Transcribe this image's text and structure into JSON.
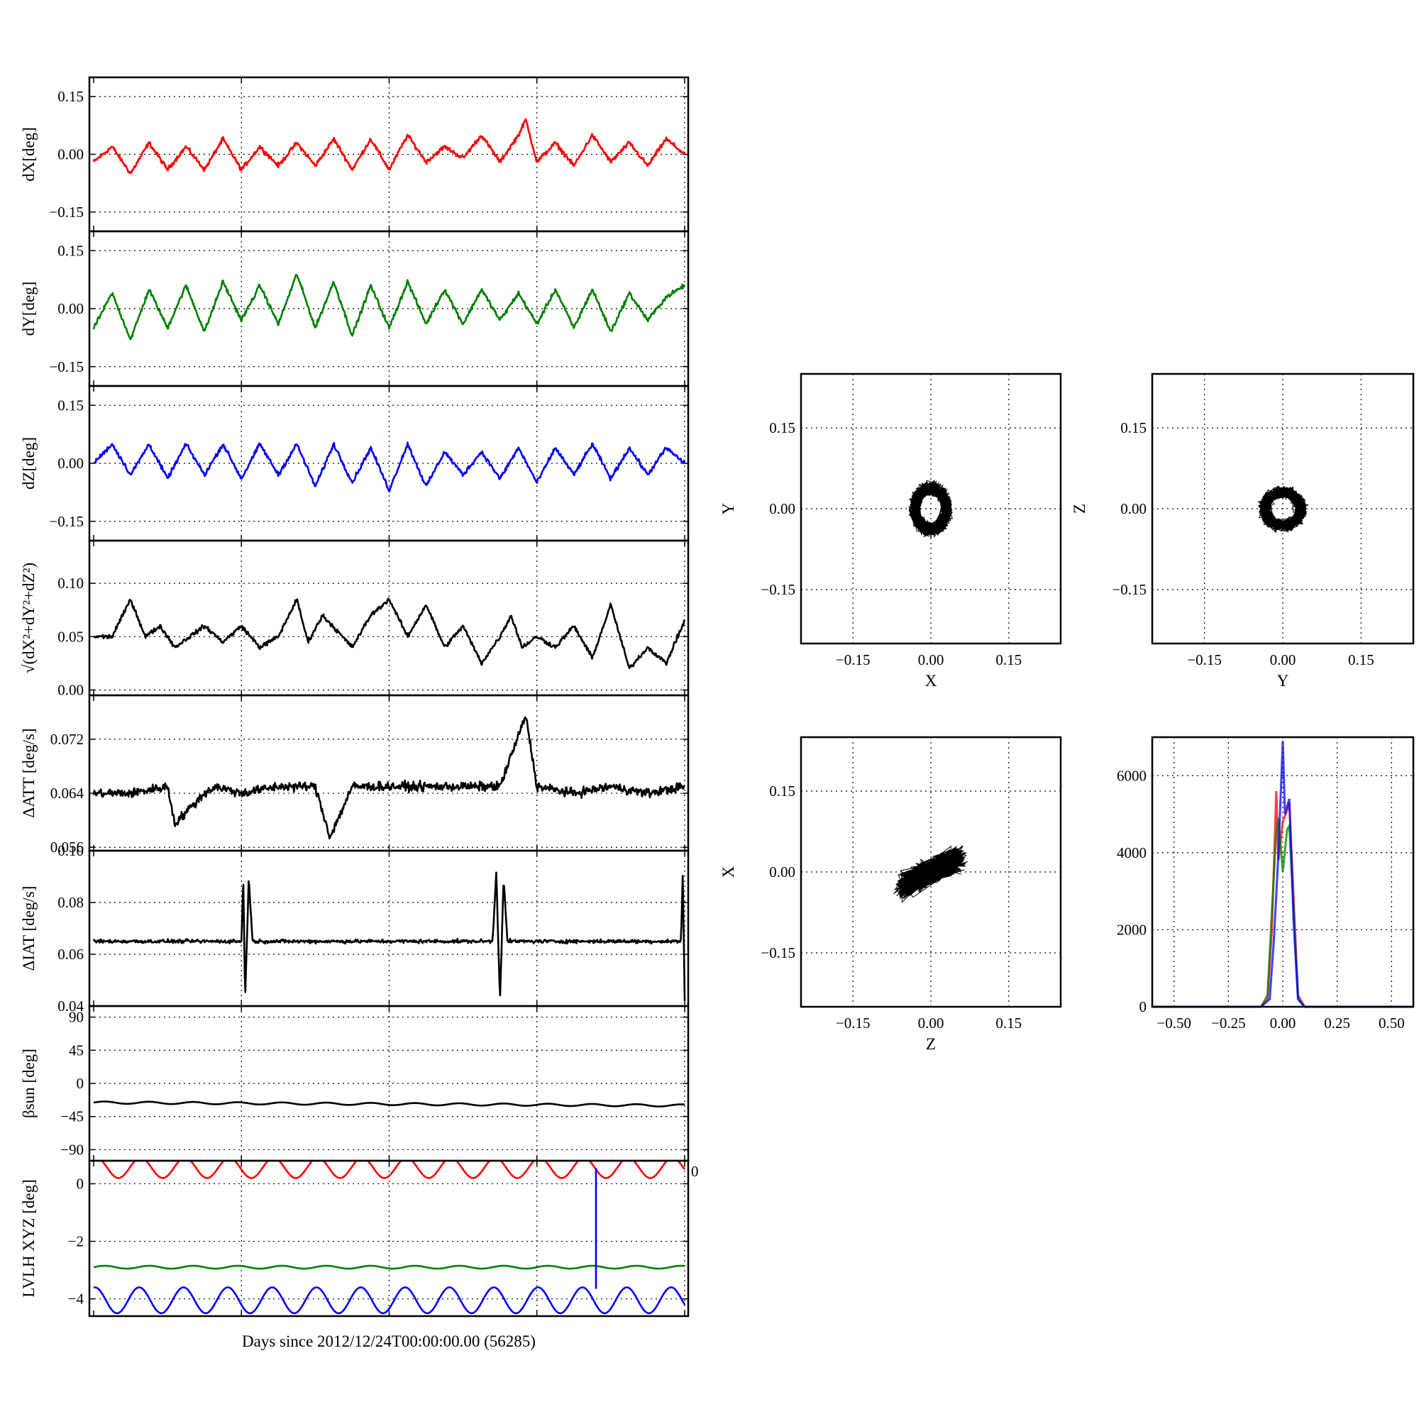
{
  "figure_xlabel": "Days since 2012/12/24T00:00:00.00 (56285)",
  "chart_data": [
    {
      "type": "line",
      "id": "dX",
      "ylabel": "dX[deg]",
      "ylim": [
        -0.2,
        0.2
      ],
      "yticks": [
        0.15,
        0.0,
        -0.15
      ],
      "ytick_labels": [
        "0.15",
        "0.00",
        "−0.15"
      ],
      "xlim": [
        0,
        16
      ],
      "xgrid": [
        4,
        8,
        12,
        16
      ],
      "grid": true,
      "series": [
        {
          "color": "#ff0000",
          "x": [
            0,
            0.5,
            1,
            1.5,
            2,
            2.5,
            3,
            3.5,
            4,
            4.5,
            5,
            5.5,
            6,
            6.5,
            7,
            7.5,
            8,
            8.5,
            9,
            9.5,
            10,
            10.5,
            11,
            11.5,
            11.7,
            12,
            12.5,
            13,
            13.5,
            14,
            14.5,
            15,
            15.5,
            16
          ],
          "y": [
            -0.02,
            0.02,
            -0.05,
            0.03,
            -0.04,
            0.02,
            -0.04,
            0.04,
            -0.04,
            0.02,
            -0.03,
            0.03,
            -0.03,
            0.04,
            -0.04,
            0.04,
            -0.04,
            0.05,
            -0.02,
            0.02,
            -0.01,
            0.05,
            -0.02,
            0.05,
            0.09,
            -0.02,
            0.03,
            -0.03,
            0.05,
            -0.02,
            0.03,
            -0.03,
            0.04,
            0.0
          ]
        }
      ]
    },
    {
      "type": "line",
      "id": "dY",
      "ylabel": "dY[deg]",
      "ylim": [
        -0.2,
        0.2
      ],
      "yticks": [
        0.15,
        0.0,
        -0.15
      ],
      "ytick_labels": [
        "0.15",
        "0.00",
        "−0.15"
      ],
      "xlim": [
        0,
        16
      ],
      "xgrid": [
        4,
        8,
        12,
        16
      ],
      "grid": true,
      "series": [
        {
          "color": "#008000",
          "x": [
            0,
            0.5,
            1,
            1.5,
            2,
            2.5,
            3,
            3.5,
            4,
            4.5,
            5,
            5.5,
            6,
            6.5,
            7,
            7.5,
            8,
            8.5,
            9,
            9.5,
            10,
            10.5,
            11,
            11.5,
            12,
            12.5,
            13,
            13.5,
            14,
            14.5,
            15,
            15.5,
            16
          ],
          "y": [
            -0.05,
            0.04,
            -0.08,
            0.05,
            -0.05,
            0.06,
            -0.06,
            0.07,
            -0.03,
            0.06,
            -0.04,
            0.09,
            -0.05,
            0.07,
            -0.07,
            0.06,
            -0.05,
            0.07,
            -0.04,
            0.05,
            -0.04,
            0.05,
            -0.03,
            0.04,
            -0.04,
            0.05,
            -0.05,
            0.05,
            -0.06,
            0.04,
            -0.03,
            0.03,
            0.06
          ]
        }
      ]
    },
    {
      "type": "line",
      "id": "dZ",
      "ylabel": "dZ[deg]",
      "ylim": [
        -0.2,
        0.2
      ],
      "yticks": [
        0.15,
        0.0,
        -0.15
      ],
      "ytick_labels": [
        "0.15",
        "0.00",
        "−0.15"
      ],
      "xlim": [
        0,
        16
      ],
      "xgrid": [
        4,
        8,
        12,
        16
      ],
      "grid": true,
      "series": [
        {
          "color": "#0000ff",
          "x": [
            0,
            0.5,
            1,
            1.5,
            2,
            2.5,
            3,
            3.5,
            4,
            4.5,
            5,
            5.5,
            6,
            6.5,
            7,
            7.5,
            8,
            8.5,
            9,
            9.5,
            10,
            10.5,
            11,
            11.5,
            12,
            12.5,
            13,
            13.5,
            14,
            14.5,
            15,
            15.5,
            16
          ],
          "y": [
            0.0,
            0.05,
            -0.03,
            0.05,
            -0.04,
            0.05,
            -0.03,
            0.05,
            -0.04,
            0.05,
            -0.03,
            0.05,
            -0.06,
            0.05,
            -0.05,
            0.04,
            -0.07,
            0.05,
            -0.06,
            0.03,
            -0.03,
            0.03,
            -0.04,
            0.04,
            -0.05,
            0.04,
            -0.03,
            0.05,
            -0.04,
            0.04,
            -0.03,
            0.04,
            0.0
          ]
        }
      ]
    },
    {
      "type": "line",
      "id": "norm",
      "ylabel": "√(dX²+dY²+dZ²)",
      "ylim": [
        -0.005,
        0.14
      ],
      "yticks": [
        0.1,
        0.05,
        0.0
      ],
      "ytick_labels": [
        "0.10",
        "0.05",
        "0.00"
      ],
      "xlim": [
        0,
        16
      ],
      "xgrid": [
        4,
        8,
        12,
        16
      ],
      "grid": true,
      "series": [
        {
          "color": "#000000",
          "x": [
            0,
            0.5,
            1,
            1.4,
            1.8,
            2.2,
            2.6,
            3,
            3.5,
            4,
            4.5,
            5,
            5.5,
            5.8,
            6.2,
            6.6,
            7,
            7.5,
            8,
            8.5,
            9,
            9.5,
            10,
            10.5,
            11,
            11.3,
            11.6,
            12,
            12.5,
            13,
            13.5,
            14,
            14.5,
            15,
            15.5,
            16
          ],
          "y": [
            0.05,
            0.05,
            0.085,
            0.05,
            0.06,
            0.04,
            0.05,
            0.06,
            0.045,
            0.06,
            0.04,
            0.05,
            0.085,
            0.045,
            0.07,
            0.055,
            0.04,
            0.07,
            0.085,
            0.05,
            0.08,
            0.04,
            0.06,
            0.025,
            0.05,
            0.07,
            0.04,
            0.05,
            0.04,
            0.06,
            0.03,
            0.08,
            0.02,
            0.04,
            0.025,
            0.065
          ]
        }
      ]
    },
    {
      "type": "line",
      "id": "dATT",
      "ylabel": "ΔATT [deg/s]",
      "ylim": [
        0.0555,
        0.0785
      ],
      "yticks": [
        0.072,
        0.064,
        0.056
      ],
      "ytick_labels": [
        "0.072",
        "0.064",
        "0.056"
      ],
      "xlim": [
        0,
        16
      ],
      "xgrid": [
        4,
        8,
        12,
        16
      ],
      "grid": true,
      "series": [
        {
          "color": "#000000",
          "x": [
            0,
            1,
            2,
            2.2,
            3,
            3.3,
            4,
            5,
            6,
            6.4,
            7,
            8,
            9,
            10,
            11,
            11.7,
            12,
            13,
            14,
            15,
            16
          ],
          "y": [
            0.064,
            0.064,
            0.065,
            0.0595,
            0.064,
            0.065,
            0.064,
            0.065,
            0.065,
            0.0575,
            0.065,
            0.065,
            0.065,
            0.065,
            0.065,
            0.0755,
            0.065,
            0.064,
            0.065,
            0.064,
            0.065
          ]
        }
      ]
    },
    {
      "type": "line",
      "id": "dIAT",
      "ylabel": "ΔIAT [deg/s]",
      "ylim": [
        0.04,
        0.1
      ],
      "yticks": [
        0.1,
        0.08,
        0.06,
        0.04
      ],
      "ytick_labels": [
        "0.10",
        "0.08",
        "0.06",
        "0.04"
      ],
      "xlim": [
        0,
        16
      ],
      "xgrid": [
        4,
        8,
        12,
        16
      ],
      "grid": true,
      "series": [
        {
          "color": "#000000",
          "x": [
            0,
            4,
            4.05,
            4.1,
            4.2,
            4.3,
            5,
            8,
            10.8,
            10.9,
            11.0,
            11.1,
            11.2,
            12,
            15.9,
            15.95,
            16
          ],
          "y": [
            0.065,
            0.065,
            0.09,
            0.042,
            0.09,
            0.065,
            0.065,
            0.065,
            0.065,
            0.092,
            0.042,
            0.09,
            0.065,
            0.065,
            0.065,
            0.092,
            0.042
          ]
        }
      ]
    },
    {
      "type": "line",
      "id": "beta",
      "ylabel": "βsun [deg]",
      "ylim": [
        -105,
        105
      ],
      "yticks": [
        90,
        45,
        0,
        -45,
        -90
      ],
      "ytick_labels": [
        "90",
        "45",
        "0",
        "−45",
        "−90"
      ],
      "xlim": [
        0,
        16
      ],
      "xgrid": [
        4,
        8,
        12,
        16
      ],
      "grid": true,
      "series": [
        {
          "color": "#000000",
          "x": [
            0,
            16
          ],
          "y": [
            -26,
            -30
          ]
        }
      ]
    },
    {
      "type": "line",
      "id": "lvlh",
      "ylabel": "LVLH XYZ [deg]",
      "ylim": [
        -4.6,
        0.8
      ],
      "yticks": [
        0,
        -2,
        -4
      ],
      "ytick_labels": [
        "0",
        "−2",
        "−4"
      ],
      "extra_tick_label": "0",
      "xlim": [
        0,
        16
      ],
      "xgrid": [
        4,
        8,
        12,
        16
      ],
      "grid": true,
      "series": [
        {
          "color": "#ff0000",
          "x": [
            0,
            16
          ],
          "y": [
            0.55,
            0.55
          ]
        },
        {
          "color": "#008000",
          "x": [
            0,
            16
          ],
          "y": [
            -2.9,
            -2.9
          ]
        },
        {
          "color": "#0000ff",
          "x": [
            0,
            16
          ],
          "y": [
            -4.05,
            -4.05
          ]
        }
      ]
    },
    {
      "type": "scatter",
      "id": "XY",
      "xlabel": "X",
      "ylabel": "Y",
      "xlim": [
        -0.25,
        0.25
      ],
      "ylim": [
        -0.25,
        0.25
      ],
      "ticks": [
        -0.15,
        0.0,
        0.15
      ],
      "tick_labels": [
        "−0.15",
        "0.00",
        "0.15"
      ],
      "grid": true,
      "center": [
        0.0,
        0.0
      ],
      "spread": [
        0.08,
        0.1
      ]
    },
    {
      "type": "scatter",
      "id": "YZ",
      "xlabel": "Y",
      "ylabel": "Z",
      "xlim": [
        -0.25,
        0.25
      ],
      "ylim": [
        -0.25,
        0.25
      ],
      "ticks": [
        -0.15,
        0.0,
        0.15
      ],
      "tick_labels": [
        "−0.15",
        "0.00",
        "0.15"
      ],
      "grid": true,
      "center": [
        0.0,
        0.0
      ],
      "spread": [
        0.09,
        0.08
      ]
    },
    {
      "type": "scatter",
      "id": "ZX",
      "xlabel": "Z",
      "ylabel": "X",
      "xlim": [
        -0.25,
        0.25
      ],
      "ylim": [
        -0.25,
        0.25
      ],
      "ticks": [
        -0.15,
        0.0,
        0.15
      ],
      "tick_labels": [
        "−0.15",
        "0.00",
        "0.15"
      ],
      "grid": true,
      "center": [
        0.0,
        0.0
      ],
      "spread": [
        0.12,
        0.06
      ]
    },
    {
      "type": "histogram",
      "id": "hist",
      "xlim": [
        -0.6,
        0.6
      ],
      "ylim": [
        0,
        7000
      ],
      "xticks": [
        -0.5,
        -0.25,
        0.0,
        0.25,
        0.5
      ],
      "xtick_labels": [
        "−0.50",
        "−0.25",
        "0.00",
        "0.25",
        "0.50"
      ],
      "yticks": [
        0,
        2000,
        4000,
        6000
      ],
      "ytick_labels": [
        "0",
        "2000",
        "4000",
        "6000"
      ],
      "grid": true,
      "series": [
        {
          "color": "#ff0000",
          "x": [
            -0.1,
            -0.07,
            -0.05,
            -0.03,
            -0.02,
            0.0,
            0.02,
            0.03,
            0.05,
            0.07,
            0.1
          ],
          "y": [
            0,
            200,
            2000,
            5600,
            3800,
            4800,
            5100,
            5300,
            2800,
            300,
            0
          ]
        },
        {
          "color": "#008000",
          "x": [
            -0.1,
            -0.07,
            -0.05,
            -0.03,
            -0.02,
            0.0,
            0.02,
            0.03,
            0.05,
            0.07,
            0.1
          ],
          "y": [
            0,
            300,
            2500,
            4500,
            4900,
            3500,
            4600,
            4700,
            2500,
            200,
            0
          ]
        },
        {
          "color": "#0000ff",
          "x": [
            -0.1,
            -0.06,
            -0.04,
            -0.02,
            0.0,
            0.01,
            0.03,
            0.05,
            0.07,
            0.1
          ],
          "y": [
            0,
            200,
            1800,
            4000,
            6900,
            5000,
            5400,
            2200,
            200,
            0
          ]
        }
      ]
    }
  ]
}
